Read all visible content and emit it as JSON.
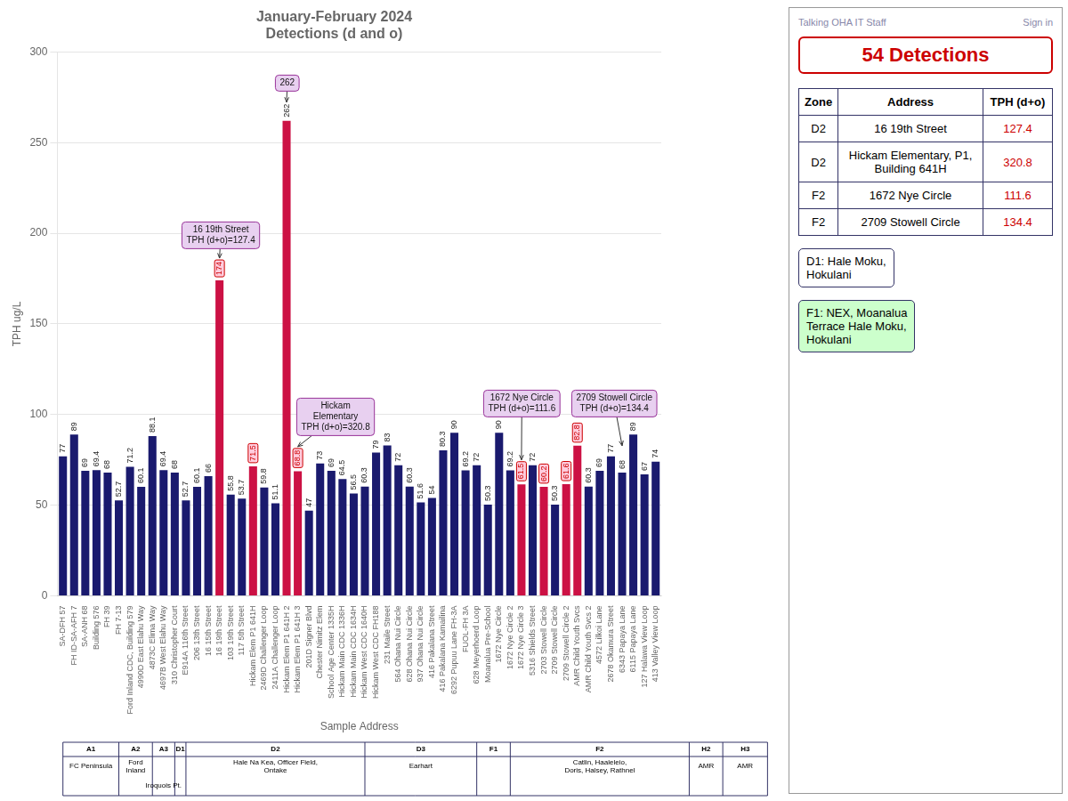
{
  "chart_data": {
    "type": "bar",
    "title": "January-February 2024\nDetections (d and o)",
    "xlabel": "Sample Address",
    "ylabel": "TPH ug/L",
    "categories": [
      "SA-DFH 57",
      "FH ID-SA-AFH 7",
      "SA-ANH 68",
      "Building 576",
      "FH 39",
      "FH 7-13",
      "Ford Inland CDC, Building 579",
      "4990D East Elahu Way",
      "4873C Elima Way",
      "4697B West Elahu Way",
      "310 Christopher Court",
      "E914A 116th Street",
      "206 13th Street",
      "16 15th Street",
      "16 19th Street",
      "103 19th Street",
      "117 5th Street",
      "Hickam Elem P1 641H",
      "2469D Challenger Loop",
      "2411A Challenger Loop",
      "Hickam Elem P1 641H 2",
      "Hickam Elem P1 641H 3",
      "201D Signer Blvd",
      "Chester Nimitz Elem",
      "School Age Center 1335H",
      "Hickam Main CDC 1336H",
      "Hickam Main CDC 1634H",
      "Hickam West CDC 1640H",
      "Hickam West CDC FH188",
      "231 Maile Street",
      "564 Ohana Nui Circle",
      "628 Ohana Nui Circle",
      "937 Ohana Nui Circle",
      "416 Pakalana Street",
      "416 Pakalana Kamailina",
      "6292 Pupuu Lane FH-3A",
      "FUOL-FH 3A",
      "628 Meyerhoerd Loop",
      "Moanalua Pre-School",
      "1672 Nye Circle",
      "1672 Nye Circle 2",
      "1672 Nye Circle 3",
      "5316 Shields Street",
      "2703 Stowell Circle",
      "2709 Stowell Circle",
      "2709 Stowell Circle 2",
      "AMR Child Youth Svcs",
      "AMR Child Youth Svcs 2",
      "4572 Lilkoi Lane",
      "2678 Okamura Street",
      "6343 Papaya Lane",
      "6115 Papaya Lane",
      "127 Halawa View Loop",
      "413 Valley View Loop"
    ],
    "values": [
      77,
      89,
      69,
      69.4,
      68,
      52.7,
      71.2,
      60.1,
      88.1,
      69.4,
      68,
      52.7,
      60.1,
      66.0,
      174,
      55.8,
      53.7,
      71.5,
      59.8,
      51.1,
      262,
      68.8,
      47,
      73,
      69,
      64.5,
      56.5,
      60.3,
      79,
      83,
      72,
      60.3,
      51.6,
      54,
      80.3,
      90,
      69.2,
      72,
      50.3,
      90,
      69.2,
      61.5,
      72,
      60.2,
      50.3,
      61.6,
      82.8,
      60.3,
      69,
      77,
      68,
      89,
      67,
      74
    ],
    "colors": [
      "#1a1a6e",
      "#1a1a6e",
      "#1a1a6e",
      "#1a1a6e",
      "#1a1a6e",
      "#1a1a6e",
      "#1a1a6e",
      "#1a1a6e",
      "#1a1a6e",
      "#1a1a6e",
      "#1a1a6e",
      "#1a1a6e",
      "#1a1a6e",
      "#1a1a6e",
      "#cc1144",
      "#1a1a6e",
      "#1a1a6e",
      "#cc1144",
      "#1a1a6e",
      "#1a1a6e",
      "#cc1144",
      "#cc1144",
      "#1a1a6e",
      "#1a1a6e",
      "#1a1a6e",
      "#1a1a6e",
      "#1a1a6e",
      "#1a1a6e",
      "#1a1a6e",
      "#1a1a6e",
      "#1a1a6e",
      "#1a1a6e",
      "#1a1a6e",
      "#1a1a6e",
      "#1a1a6e",
      "#1a1a6e",
      "#1a1a6e",
      "#1a1a6e",
      "#1a1a6e",
      "#1a1a6e",
      "#1a1a6e",
      "#cc1144",
      "#1a1a6e",
      "#cc1144",
      "#1a1a6e",
      "#cc1144",
      "#cc1144",
      "#1a1a6e",
      "#1a1a6e",
      "#1a1a6e",
      "#1a1a6e",
      "#1a1a6e",
      "#1a1a6e",
      "#1a1a6e"
    ],
    "ylim": [
      0,
      300
    ],
    "yticks": [
      0,
      50,
      100,
      150,
      200,
      250,
      300
    ],
    "grid": true,
    "data_labels": true,
    "boxed_labels": [
      "16 19th Street",
      "Hickam Elem P1 641H",
      "Hickam Elem P1 641H 3",
      "1672 Nye Circle 3",
      "2703 Stowell Circle",
      "2709 Stowell Circle 2",
      "AMR Child Youth Svcs"
    ],
    "annotations": [
      {
        "text": "16 19th Street\nTPH (d+o)=127.4",
        "category": "16 19th Street",
        "value": 174
      },
      {
        "text": "262",
        "category": "Hickam Elem P1 641H 2",
        "value": 262
      },
      {
        "text": "Hickam\nElementary\nTPH (d+o)=320.8",
        "category": "Hickam Elem P1 641H 3",
        "value": 68.8
      },
      {
        "text": "1672 Nye Circle\nTPH (d+o)=111.6",
        "category": "1672 Nye Circle 3",
        "value": 61.5
      },
      {
        "text": "2709 Stowell Circle\nTPH (d+o)=134.4",
        "category": "6343 Papaya Lane",
        "value": 82.8
      }
    ],
    "zones": [
      {
        "label": "A1",
        "desc": "FC Peninsula",
        "start": 0,
        "end": 5
      },
      {
        "label": "A2",
        "desc": "Ford\nInland",
        "start": 5,
        "end": 8
      },
      {
        "label": "A3",
        "desc": "Iroquois Pt.",
        "start": 8,
        "end": 10
      },
      {
        "label": "D1",
        "start": 10,
        "end": 11
      },
      {
        "label": "D2",
        "desc": "Hale Na Kea, Officer Field,\nOntake",
        "start": 11,
        "end": 27
      },
      {
        "label": "D3",
        "desc": "Earhart",
        "start": 27,
        "end": 37
      },
      {
        "label": "F1",
        "start": 37,
        "end": 40
      },
      {
        "label": "F2",
        "desc": "Catlin, Haaleleio,\nDoris, Halsey, Rathnel",
        "start": 40,
        "end": 56
      },
      {
        "label": "H2",
        "desc": "AMR",
        "start": 56,
        "end": 59
      },
      {
        "label": "H3",
        "desc": "AMR",
        "start": 59,
        "end": 63
      }
    ],
    "table": {
      "title": "54 Detections",
      "headers": [
        "Zone",
        "Address",
        "TPH (d+o)"
      ],
      "rows": [
        [
          "D2",
          "16 19th Street",
          "127.4"
        ],
        [
          "D2",
          "Hickam Elementary, P1,\nBuilding 641H",
          "320.8"
        ],
        [
          "F2",
          "1672 Nye Circle",
          "111.6"
        ],
        [
          "F2",
          "2709 Stowell Circle",
          "134.4"
        ]
      ]
    },
    "notes": [
      {
        "text": "D1: Hale Moku,\nHokulani",
        "color": "#ffffff"
      },
      {
        "text": "F1: NEX, Moanalua\nTerrace Hale Moku,\nHokulani",
        "color": "#ccffcc"
      }
    ],
    "screen_texts": [
      "Talking OHA IT Staff",
      "Sign in"
    ]
  }
}
